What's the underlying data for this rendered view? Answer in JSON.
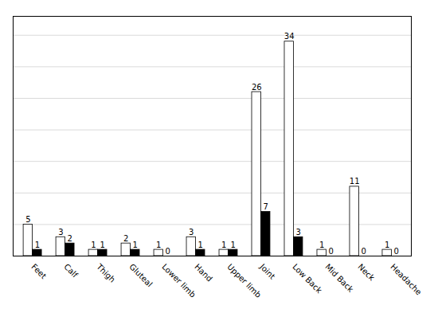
{
  "chart_data": {
    "type": "bar",
    "categories": [
      "Feet",
      "Calf",
      "Thigh",
      "Gluteal",
      "Lower limb",
      "Hand",
      "Upper limb",
      "Joint",
      "Low Back",
      "Mid Back",
      "Neck",
      "Headache"
    ],
    "series": [
      {
        "color": "#ffffff",
        "values": [
          5,
          3,
          1,
          2,
          1,
          3,
          1,
          26,
          34,
          1,
          11,
          1
        ]
      },
      {
        "color": "#000000",
        "values": [
          1,
          2,
          1,
          1,
          0,
          1,
          1,
          7,
          3,
          0,
          0,
          0
        ]
      }
    ],
    "ylim": [
      0,
      38
    ],
    "yticks": [
      0,
      5,
      10,
      15,
      20,
      25,
      30,
      35
    ],
    "grid": true,
    "data_labels": true,
    "tick_labels": "x"
  }
}
